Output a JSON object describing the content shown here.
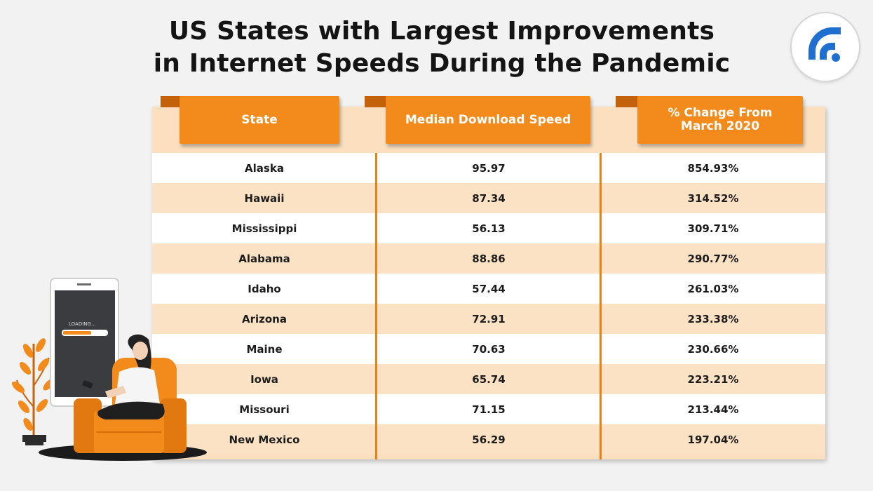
{
  "title_line1": "US States with Largest Improvements",
  "title_line2": "in Internet Speeds During the Pandemic",
  "logo_icon": "wifi-signal-icon",
  "accent_color": "#f28a1c",
  "loading_text": "LOADING...",
  "headers": {
    "state": "State",
    "speed": "Median Download Speed",
    "change_line1": "% Change From",
    "change_line2": "March 2020"
  },
  "chart_data": {
    "type": "table",
    "title": "US States with Largest Improvements in Internet Speeds During the Pandemic",
    "columns": [
      "State",
      "Median Download Speed",
      "% Change From March 2020"
    ],
    "rows": [
      {
        "state": "Alaska",
        "speed": "95.97",
        "change": "854.93%"
      },
      {
        "state": "Hawaii",
        "speed": "87.34",
        "change": "314.52%"
      },
      {
        "state": "Mississippi",
        "speed": "56.13",
        "change": "309.71%"
      },
      {
        "state": "Alabama",
        "speed": "88.86",
        "change": "290.77%"
      },
      {
        "state": "Idaho",
        "speed": "57.44",
        "change": "261.03%"
      },
      {
        "state": "Arizona",
        "speed": "72.91",
        "change": "233.38%"
      },
      {
        "state": "Maine",
        "speed": "70.63",
        "change": "230.66%"
      },
      {
        "state": "Iowa",
        "speed": "65.74",
        "change": "223.21%"
      },
      {
        "state": "Missouri",
        "speed": "71.15",
        "change": "213.44%"
      },
      {
        "state": "New Mexico",
        "speed": "56.29",
        "change": "197.04%"
      }
    ]
  }
}
